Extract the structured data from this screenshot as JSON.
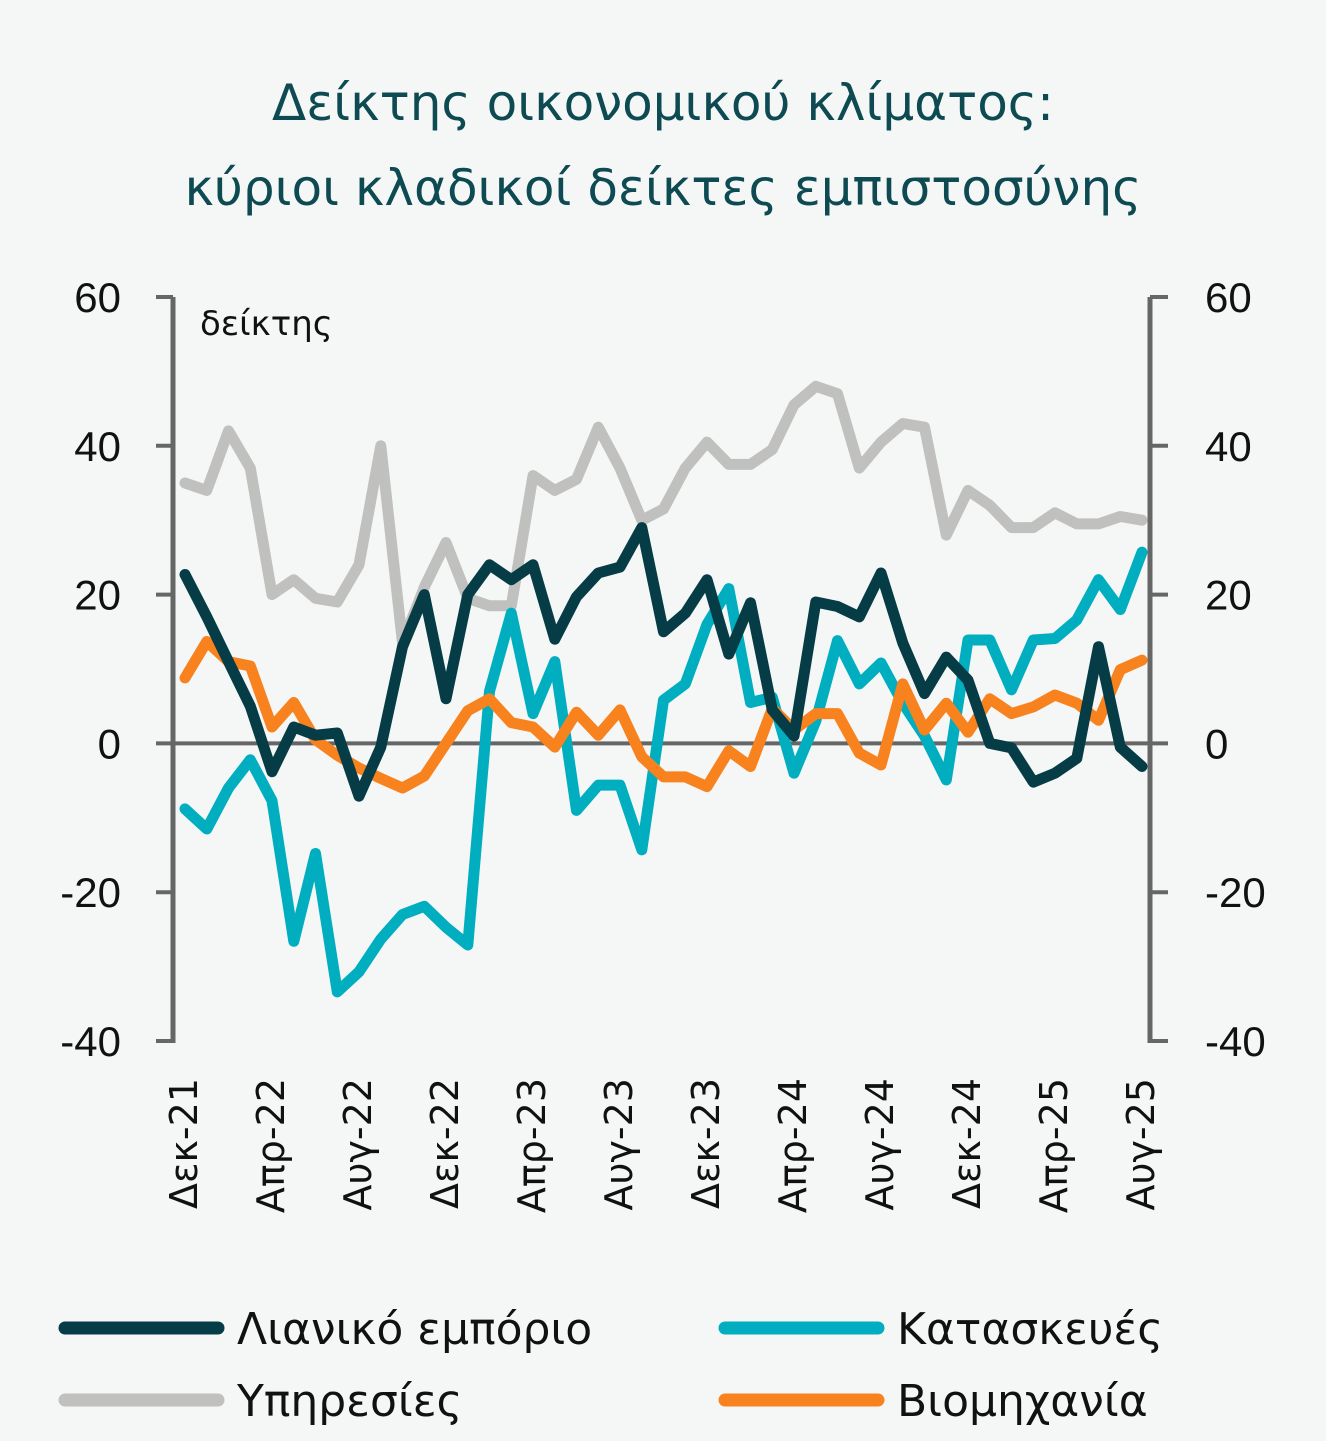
{
  "chart_data": {
    "type": "line",
    "title": [
      "Δείκτης οικονομικού κλίματος:",
      "κύριοι κλαδικοί δείκτες εμπιστοσύνης"
    ],
    "ylabel": "δείκτης",
    "ylim": [
      -40,
      60
    ],
    "yticks": [
      "60",
      "40",
      "20",
      "0",
      "-20",
      "-40"
    ],
    "ytick_values": [
      60,
      40,
      20,
      0,
      -20,
      -40
    ],
    "xtick_labels": [
      "Δεκ-21",
      "Απρ-22",
      "Αυγ-22",
      "Δεκ-22",
      "Απρ-23",
      "Αυγ-23",
      "Δεκ-23",
      "Απρ-24",
      "Αυγ-24",
      "Δεκ-24",
      "Απρ-25",
      "Αυγ-25"
    ],
    "x_start": "Δεκ-21",
    "x_end": "Αυγ-25",
    "n_points": 45,
    "legend_position": "bottom",
    "series": [
      {
        "name": "Λιανικό εμπόριο",
        "color": "#063c46",
        "values": [
          22.7,
          17,
          11,
          5,
          -3.8,
          2.2,
          1.1,
          1.4,
          -7.1,
          -0.5,
          13,
          20,
          6,
          20,
          24,
          22,
          24,
          14,
          19.7,
          22.9,
          23.7,
          29,
          15,
          17.5,
          22,
          12,
          18.9,
          4.5,
          1,
          19,
          18.4,
          17,
          22.9,
          13.5,
          6.7,
          11.6,
          8.5,
          0,
          -0.6,
          -5.2,
          -4,
          -2,
          13,
          -0.5,
          -3.1
        ]
      },
      {
        "name": "Κατασκευές",
        "color": "#00aec0",
        "values": [
          -8.8,
          -11.5,
          -6,
          -2.2,
          -7.7,
          -26.6,
          -14.8,
          -33.4,
          -30.7,
          -26.3,
          -23,
          -21.9,
          -24.7,
          -27.1,
          7,
          17.5,
          4,
          11,
          -9,
          -5.6,
          -5.6,
          -14.3,
          5.8,
          8,
          16,
          20.8,
          5.5,
          6.2,
          -4,
          3,
          13.8,
          8,
          10.8,
          5.4,
          1,
          -4.9,
          13.9,
          13.9,
          7.2,
          13.9,
          14.1,
          16.6,
          22,
          18,
          25.7
        ]
      },
      {
        "name": "Υπηρεσίες",
        "color": "#c0c1be",
        "values": [
          35,
          34,
          42,
          37,
          20,
          22,
          19.5,
          19,
          24,
          40,
          13.5,
          21,
          27,
          19.5,
          18.5,
          18.5,
          36,
          34,
          35.5,
          42.5,
          37,
          30,
          31.5,
          37,
          40.5,
          37.5,
          37.5,
          39.5,
          45.5,
          48,
          47,
          37,
          40.5,
          43,
          42.5,
          28,
          34,
          32,
          29,
          29,
          31,
          29.5,
          29.5,
          30.5,
          30
        ]
      },
      {
        "name": "Βιομηχανία",
        "color": "#f7821e",
        "values": [
          8.8,
          13.7,
          11,
          10.4,
          2.2,
          5.5,
          0.5,
          -1.6,
          -3.3,
          -4.7,
          -6,
          -4.4,
          0,
          4.4,
          6,
          2.8,
          2.2,
          -0.5,
          4.2,
          1.1,
          4.5,
          -1.8,
          -4.5,
          -4.5,
          -5.8,
          -1,
          -3.1,
          4.7,
          1.8,
          4,
          4,
          -1.3,
          -2.9,
          8,
          1.8,
          5.4,
          1.5,
          6,
          4,
          4.9,
          6.5,
          5.4,
          3.1,
          9.9,
          11.2
        ]
      }
    ]
  }
}
